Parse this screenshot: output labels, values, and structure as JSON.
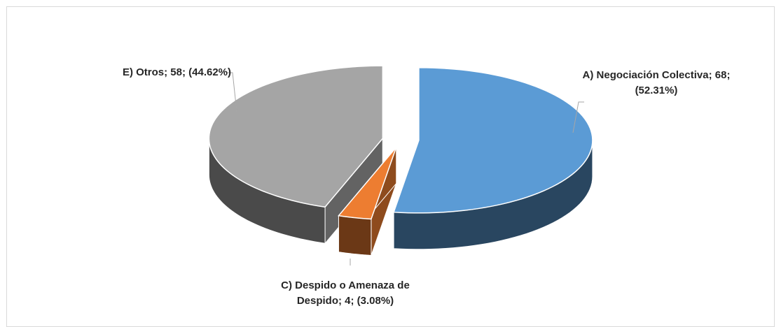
{
  "chart_data": {
    "type": "pie",
    "categories": [
      "A) Negociación Colectiva",
      "C) Despido o Amenaza de Despido",
      "E) Otros"
    ],
    "values": [
      68,
      4,
      58
    ],
    "value_labels": [
      "A) Negociación Colectiva; 68; (52.31%)",
      "C) Despido o Amenaza de Despido; 4; (3.08%)",
      "E) Otros; 58; (44.62%)"
    ],
    "colors": [
      "#5b9bd5",
      "#ed7d31",
      "#a5a5a5"
    ]
  }
}
